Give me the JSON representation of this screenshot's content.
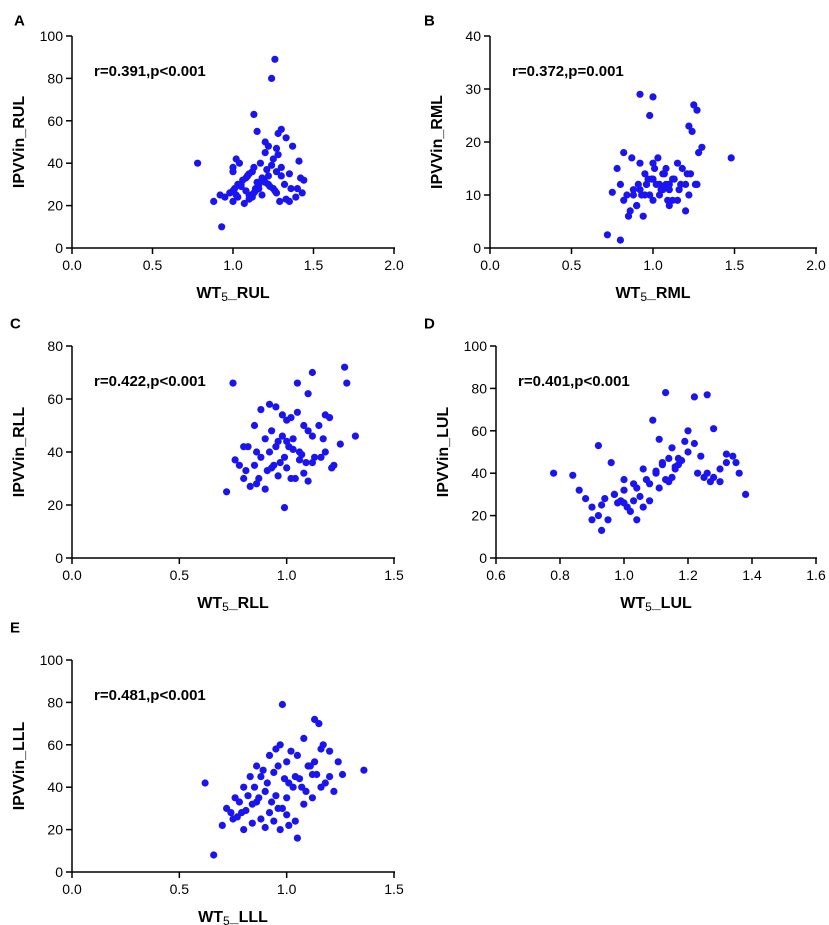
{
  "chart_data": [
    {
      "type": "scatter",
      "panel": "A",
      "xlabel": "WT5_RUL",
      "ylabel": "IPVVin_RUL",
      "annotation": "r=0.391,p<0.001",
      "xlim": [
        0.0,
        2.0
      ],
      "ylim": [
        0,
        100
      ],
      "xticks": [
        "0.0",
        "0.5",
        "1.0",
        "1.5",
        "2.0"
      ],
      "yticks": [
        "0",
        "20",
        "40",
        "60",
        "80",
        "100"
      ],
      "x": [
        1.26,
        1.24,
        0.78,
        0.93,
        1.13,
        1.15,
        1.2,
        1.28,
        1.3,
        1.33,
        1.37,
        1.41,
        0.95,
        1.0,
        1.02,
        1.05,
        1.08,
        1.1,
        1.13,
        1.17,
        1.2,
        1.22,
        1.25,
        1.28,
        1.3,
        1.35,
        1.4,
        1.43,
        0.88,
        0.92,
        0.98,
        1.01,
        1.03,
        1.06,
        1.09,
        1.12,
        1.15,
        1.18,
        1.21,
        1.24,
        1.27,
        1.3,
        1.32,
        1.36,
        1.44,
        1.0,
        1.02,
        1.05,
        1.08,
        1.1,
        1.12,
        1.14,
        1.16,
        1.19,
        1.22,
        1.25,
        1.27,
        1.29,
        1.33,
        1.39,
        1.0,
        1.03,
        1.07,
        1.1,
        1.13,
        1.16,
        1.2,
        1.23,
        1.26,
        1.0,
        1.04,
        1.09,
        1.14,
        1.18,
        1.22,
        1.27,
        1.35,
        1.42
      ],
      "y": [
        89,
        80,
        40,
        10,
        63,
        55,
        50,
        54,
        56,
        52,
        48,
        41,
        24,
        27,
        25,
        30,
        33,
        35,
        38,
        40,
        45,
        48,
        42,
        44,
        38,
        35,
        28,
        26,
        22,
        25,
        26,
        28,
        30,
        32,
        34,
        36,
        31,
        33,
        37,
        39,
        36,
        34,
        30,
        28,
        32,
        38,
        42,
        29,
        27,
        25,
        24,
        27,
        30,
        32,
        34,
        28,
        26,
        22,
        23,
        24,
        22,
        24,
        21,
        23,
        26,
        28,
        31,
        29,
        27,
        36,
        40,
        34,
        28,
        25,
        30,
        47,
        22,
        33
      ]
    },
    {
      "type": "scatter",
      "panel": "B",
      "xlabel": "WT5_RML",
      "ylabel": "IPVVin_RML",
      "annotation": "r=0.372,p=0.001",
      "xlim": [
        0.0,
        2.0
      ],
      "ylim": [
        0,
        40
      ],
      "xticks": [
        "0.0",
        "0.5",
        "1.0",
        "1.5",
        "2.0"
      ],
      "yticks": [
        "0",
        "10",
        "20",
        "30",
        "40"
      ],
      "x": [
        0.92,
        0.98,
        1.0,
        1.25,
        1.27,
        1.22,
        1.24,
        1.3,
        1.48,
        0.78,
        0.82,
        0.87,
        0.92,
        0.95,
        0.97,
        1.0,
        1.03,
        1.06,
        1.08,
        1.1,
        1.12,
        1.15,
        1.18,
        1.2,
        1.23,
        1.27,
        0.8,
        0.84,
        0.88,
        0.91,
        0.93,
        0.96,
        0.99,
        1.01,
        1.04,
        1.07,
        1.1,
        1.13,
        1.17,
        1.21,
        1.26,
        0.72,
        0.8,
        0.85,
        0.9,
        0.95,
        1.0,
        1.05,
        1.1,
        1.15,
        1.2,
        0.88,
        0.92,
        0.96,
        1.0,
        1.04,
        1.08,
        1.12,
        1.16,
        1.22,
        0.75,
        0.82,
        0.86,
        0.9,
        0.94,
        0.98,
        1.02,
        1.06,
        1.09,
        1.28
      ],
      "y": [
        29,
        25,
        28.5,
        27,
        26,
        23,
        22,
        19,
        17,
        15,
        18,
        17,
        16,
        14,
        13,
        16,
        17,
        14,
        15,
        12,
        13,
        16,
        15,
        12,
        14,
        12,
        12,
        10,
        11,
        12,
        10,
        12,
        13,
        15,
        12,
        14,
        11,
        13,
        12,
        14,
        12,
        2.5,
        1.5,
        6,
        8,
        10,
        9,
        11,
        8,
        9,
        7,
        10,
        11,
        12,
        13,
        10,
        12,
        9,
        11,
        10,
        10.5,
        9,
        7,
        8,
        6,
        10,
        12,
        11,
        9,
        18
      ]
    },
    {
      "type": "scatter",
      "panel": "C",
      "xlabel": "WT5_RLL",
      "ylabel": "IPVVin_RLL",
      "annotation": "r=0.422,p<0.001",
      "xlim": [
        0.0,
        1.5
      ],
      "ylim": [
        0,
        80
      ],
      "xticks": [
        "0.0",
        "0.5",
        "1.0",
        "1.5"
      ],
      "yticks": [
        "0",
        "20",
        "40",
        "60",
        "80"
      ],
      "x": [
        0.75,
        1.27,
        1.28,
        1.12,
        1.05,
        1.1,
        1.18,
        1.2,
        1.32,
        0.8,
        0.85,
        0.88,
        0.92,
        0.95,
        0.98,
        1.0,
        1.02,
        1.05,
        1.08,
        1.1,
        1.12,
        1.15,
        1.18,
        1.22,
        1.25,
        0.78,
        0.82,
        0.86,
        0.9,
        0.93,
        0.96,
        0.99,
        1.01,
        1.03,
        1.06,
        1.09,
        1.13,
        1.17,
        1.21,
        0.72,
        0.8,
        0.85,
        0.88,
        0.92,
        0.95,
        0.98,
        1.0,
        1.03,
        1.07,
        1.1,
        0.83,
        0.87,
        0.91,
        0.94,
        0.97,
        1.0,
        1.04,
        1.08,
        1.12,
        1.16,
        0.76,
        0.81,
        0.86,
        0.9,
        0.93,
        0.96,
        0.99,
        1.02,
        1.06
      ],
      "y": [
        66,
        72,
        66,
        70,
        66,
        62,
        54,
        53,
        46,
        42,
        50,
        56,
        58,
        57,
        54,
        52,
        53,
        55,
        50,
        48,
        46,
        50,
        40,
        35,
        43,
        35,
        42,
        40,
        45,
        48,
        44,
        38,
        42,
        45,
        40,
        36,
        38,
        45,
        34,
        25,
        30,
        35,
        38,
        40,
        42,
        46,
        44,
        41,
        39,
        29,
        27,
        30,
        33,
        35,
        36,
        34,
        30,
        32,
        36,
        38,
        37,
        33,
        28,
        26,
        34,
        31,
        19,
        30,
        37
      ]
    },
    {
      "type": "scatter",
      "panel": "D",
      "xlabel": "WT5_LUL",
      "ylabel": "IPVVin_LUL",
      "annotation": "r=0.401,p<0.001",
      "xlim": [
        0.6,
        1.6
      ],
      "ylim": [
        0,
        100
      ],
      "xticks": [
        "0.6",
        "0.8",
        "1.0",
        "1.2",
        "1.4",
        "1.6"
      ],
      "yticks": [
        "0",
        "20",
        "40",
        "60",
        "80",
        "100"
      ],
      "x": [
        0.78,
        0.84,
        0.86,
        0.88,
        0.9,
        0.92,
        0.93,
        0.95,
        0.97,
        0.99,
        1.0,
        1.02,
        1.04,
        1.06,
        1.08,
        1.1,
        1.12,
        1.14,
        1.16,
        1.18,
        1.2,
        1.22,
        1.24,
        1.26,
        1.28,
        1.3,
        1.32,
        1.34,
        1.36,
        1.38,
        0.92,
        0.96,
        1.0,
        1.03,
        1.05,
        1.08,
        1.11,
        1.13,
        1.15,
        1.17,
        1.2,
        1.23,
        1.25,
        1.27,
        1.3,
        0.94,
        0.98,
        1.01,
        1.04,
        1.07,
        1.1,
        1.12,
        1.14,
        1.16,
        1.19,
        1.22,
        1.26,
        1.28,
        1.32,
        1.35,
        0.9,
        0.93,
        0.97,
        1.0,
        1.03,
        1.06,
        1.09,
        1.11,
        1.13,
        1.15,
        1.17
      ],
      "y": [
        40,
        39,
        32,
        28,
        24,
        20,
        13,
        18,
        30,
        27,
        26,
        22,
        18,
        24,
        35,
        40,
        44,
        36,
        42,
        46,
        50,
        54,
        48,
        40,
        38,
        36,
        45,
        48,
        40,
        30,
        53,
        45,
        37,
        35,
        29,
        27,
        33,
        37,
        38,
        44,
        60,
        40,
        38,
        36,
        42,
        28,
        26,
        24,
        33,
        37,
        41,
        45,
        47,
        43,
        55,
        76,
        77,
        61,
        49,
        45,
        18,
        25,
        30,
        32,
        27,
        42,
        65,
        56,
        78,
        52,
        47
      ]
    },
    {
      "type": "scatter",
      "panel": "E",
      "xlabel": "WT5_LLL",
      "ylabel": "IPVVin_LLL",
      "annotation": "r=0.481,p<0.001",
      "xlim": [
        0.0,
        1.5
      ],
      "ylim": [
        0,
        100
      ],
      "xticks": [
        "0.0",
        "0.5",
        "1.0",
        "1.5"
      ],
      "yticks": [
        "0",
        "20",
        "40",
        "60",
        "80",
        "100"
      ],
      "x": [
        0.62,
        0.66,
        0.98,
        1.13,
        1.15,
        1.17,
        1.2,
        1.36,
        1.26,
        0.72,
        0.76,
        0.8,
        0.83,
        0.86,
        0.89,
        0.92,
        0.95,
        0.97,
        1.0,
        1.02,
        1.05,
        1.08,
        1.1,
        1.13,
        1.16,
        1.2,
        1.24,
        0.74,
        0.78,
        0.82,
        0.85,
        0.88,
        0.91,
        0.94,
        0.96,
        0.99,
        1.01,
        1.04,
        1.07,
        1.11,
        1.14,
        1.18,
        1.22,
        0.7,
        0.75,
        0.79,
        0.84,
        0.87,
        0.9,
        0.93,
        0.95,
        0.98,
        1.0,
        1.03,
        1.06,
        1.09,
        1.12,
        0.8,
        0.84,
        0.88,
        0.92,
        0.96,
        1.0,
        1.04,
        1.08,
        1.12,
        1.16,
        0.77,
        0.81,
        0.86,
        0.9,
        0.94,
        0.97,
        1.01,
        1.05
      ],
      "y": [
        42,
        8,
        79,
        72,
        70,
        60,
        57,
        48,
        46,
        30,
        35,
        40,
        45,
        50,
        48,
        55,
        58,
        60,
        52,
        57,
        55,
        63,
        50,
        52,
        58,
        45,
        52,
        28,
        33,
        36,
        40,
        45,
        42,
        47,
        50,
        44,
        42,
        45,
        40,
        50,
        46,
        42,
        38,
        22,
        25,
        28,
        32,
        35,
        38,
        33,
        36,
        30,
        35,
        40,
        44,
        38,
        46,
        20,
        23,
        25,
        28,
        30,
        27,
        24,
        32,
        35,
        40,
        26,
        29,
        33,
        21,
        24,
        20,
        22,
        16
      ]
    }
  ]
}
